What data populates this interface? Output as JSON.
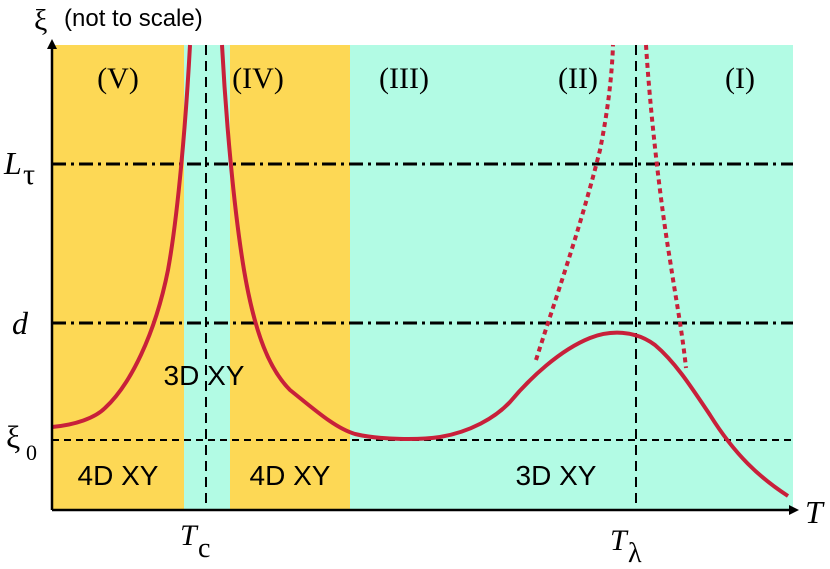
{
  "y_axis": {
    "symbol": "ξ",
    "note": "(not to scale)"
  },
  "x_axis": {
    "symbol": "T"
  },
  "y_ticks": {
    "L_main": "L",
    "L_sub": "τ",
    "d": "d",
    "xi_main": "ξ",
    "xi_sub": "0"
  },
  "x_ticks": {
    "Tc_main": "T",
    "Tc_sub": "c",
    "Tl_main": "T",
    "Tl_sub": "λ"
  },
  "regions": [
    "(V)",
    "(IV)",
    "(III)",
    "(II)",
    "(I)"
  ],
  "phase_labels": {
    "left_4d": "4D XY",
    "center_3d": "3D XY",
    "mid_4d": "4D XY",
    "right_3d": "3D XY"
  },
  "colors": {
    "yellow": "#FDD855",
    "cyan": "#B2FBE4",
    "curve": "#C8203A",
    "axis": "#000000"
  }
}
